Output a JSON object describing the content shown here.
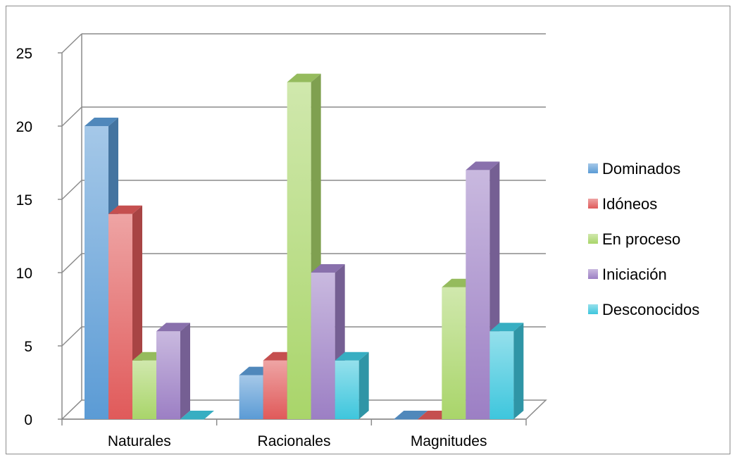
{
  "chart_data": {
    "type": "bar",
    "categories": [
      "Naturales",
      "Racionales",
      "Magnitudes"
    ],
    "series": [
      {
        "name": "Dominados",
        "values": [
          20,
          3,
          0
        ]
      },
      {
        "name": "Idóneos",
        "values": [
          14,
          4,
          0
        ]
      },
      {
        "name": "En proceso",
        "values": [
          4,
          23,
          9
        ]
      },
      {
        "name": "Iniciación",
        "values": [
          6,
          10,
          17
        ]
      },
      {
        "name": "Desconocidos",
        "values": [
          0,
          4,
          6
        ]
      }
    ],
    "colors": [
      "#5b9bd5",
      "#e05a5a",
      "#a9d56a",
      "#9c7fc4",
      "#3ec6dd"
    ],
    "yticks": [
      "0",
      "5",
      "10",
      "15",
      "20",
      "25"
    ],
    "ylim": [
      0,
      25
    ],
    "grid": true,
    "legend_position": "right",
    "style": "3d-clustered-column"
  }
}
